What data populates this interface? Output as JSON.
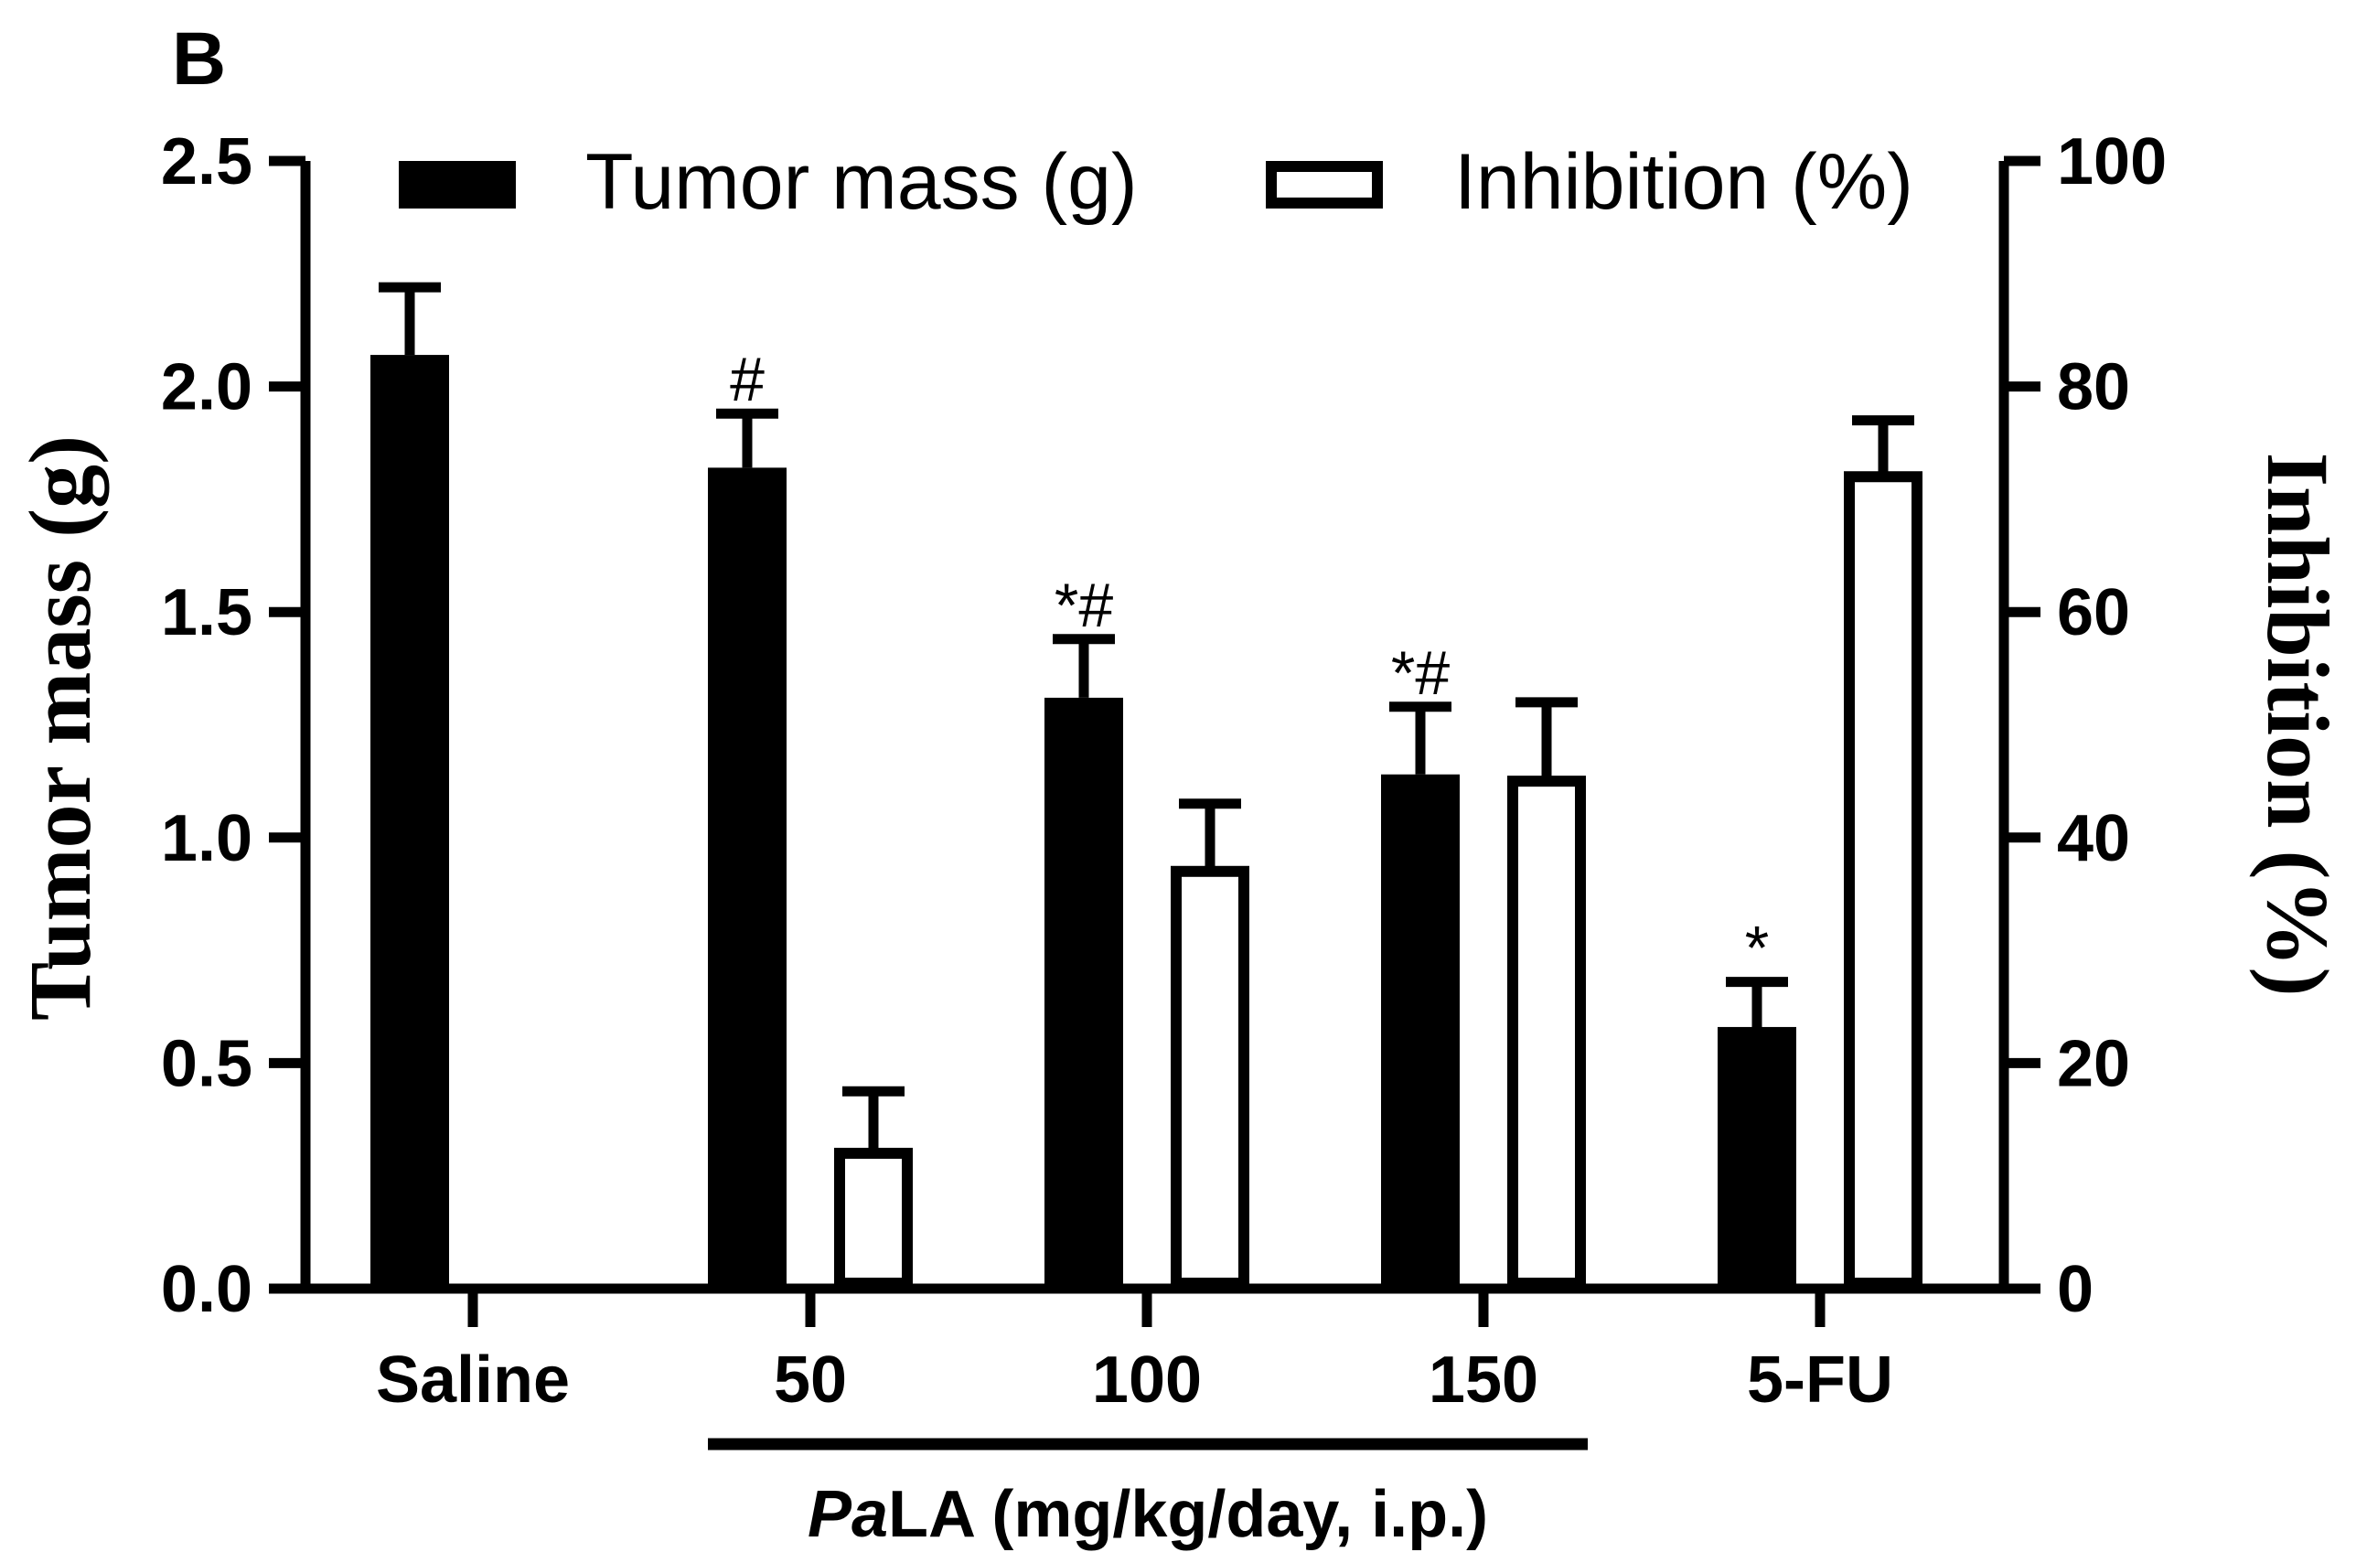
{
  "panel_label": "B",
  "chart_data": {
    "type": "bar",
    "categories": [
      "Saline",
      "50",
      "100",
      "150",
      "5-FU"
    ],
    "series": [
      {
        "name": "Tumor mass (g)",
        "axis": "left",
        "fill": "#000000",
        "values": [
          2.07,
          1.82,
          1.31,
          1.14,
          0.58
        ],
        "errors": [
          0.15,
          0.12,
          0.13,
          0.15,
          0.1
        ],
        "annotations": [
          "",
          "#",
          "*#",
          "*#",
          "*"
        ]
      },
      {
        "name": "Inhibition (%)",
        "axis": "right",
        "fill": "#ffffff",
        "values": [
          null,
          12,
          37,
          45,
          72
        ],
        "errors": [
          null,
          5.5,
          6,
          7,
          5
        ]
      }
    ],
    "left_axis": {
      "label": "Tumor mass (g)",
      "ylim": [
        0,
        2.5
      ],
      "ticks": [
        0.0,
        0.5,
        1.0,
        1.5,
        2.0,
        2.5
      ],
      "tick_labels": [
        "0.0",
        "0.5",
        "1.0",
        "1.5",
        "2.0",
        "2.5"
      ]
    },
    "right_axis": {
      "label": "Inhibition (%)",
      "ylim": [
        0,
        100
      ],
      "ticks": [
        0,
        20,
        40,
        60,
        80,
        100
      ],
      "tick_labels": [
        "0",
        "20",
        "40",
        "60",
        "80",
        "100"
      ]
    },
    "group_bracket": {
      "label_italic": "Pa",
      "label_rest": "LA (mg/kg/day, i.p.)",
      "spans_categories": [
        "50",
        "100",
        "150"
      ]
    },
    "legend": {
      "position": "top",
      "entries": [
        "Tumor mass (g)",
        "Inhibition (%)"
      ]
    },
    "grid": false
  }
}
